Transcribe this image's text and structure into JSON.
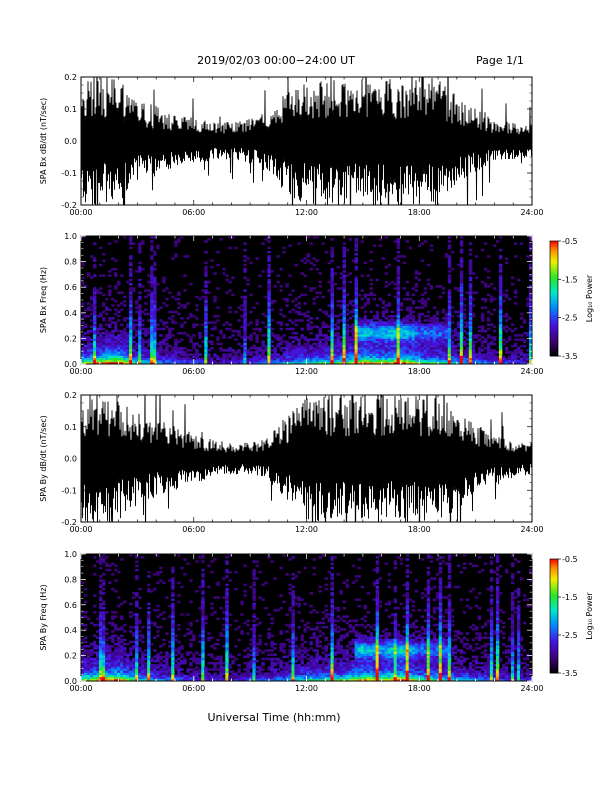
{
  "header": {
    "title": "2019/02/03  00:00−24:00 UT",
    "page": "Page 1/1"
  },
  "xlabel": "Universal Time (hh:mm)",
  "colorbar": {
    "label": "Log₁₀ Power",
    "ticks": [
      "-0.5",
      "-1.5",
      "-2.5",
      "-3.5"
    ],
    "range": [
      -3.5,
      -0.5
    ]
  },
  "chart_data": [
    {
      "type": "line",
      "ylabel": "SPA Bx dB/dt (nT/sec)",
      "xlim": [
        0,
        24
      ],
      "ylim": [
        -0.2,
        0.2
      ],
      "x_ticks": [
        "00:00",
        "06:00",
        "12:00",
        "18:00",
        "24:00"
      ],
      "y_ticks": [
        "0.2",
        "0.1",
        "0.0",
        "-0.1",
        "-0.2"
      ],
      "envelope": {
        "x_hours": [
          0,
          1,
          2,
          3,
          4,
          5,
          6,
          7,
          8,
          9,
          10,
          11,
          12,
          13,
          14,
          15,
          16,
          17,
          18,
          19,
          20,
          21,
          22,
          23,
          24
        ],
        "amplitude": [
          0.2,
          0.2,
          0.2,
          0.13,
          0.11,
          0.08,
          0.07,
          0.06,
          0.06,
          0.07,
          0.1,
          0.17,
          0.2,
          0.2,
          0.2,
          0.2,
          0.2,
          0.2,
          0.2,
          0.2,
          0.14,
          0.1,
          0.07,
          0.06,
          0.05
        ]
      }
    },
    {
      "type": "heatmap",
      "ylabel": "SPA Bx Freq (Hz)",
      "xlim": [
        0,
        24
      ],
      "ylim": [
        0,
        1
      ],
      "x_ticks": [
        "00:00",
        "06:00",
        "12:00",
        "18:00",
        "24:00"
      ],
      "y_ticks": [
        "1.0",
        "0.8",
        "0.6",
        "0.4",
        "0.2",
        "0.0"
      ],
      "z_range": [
        -3.5,
        -0.5
      ],
      "activity": {
        "x_hours": [
          0,
          1,
          2,
          3,
          4,
          5,
          6,
          7,
          8,
          9,
          10,
          11,
          12,
          13,
          14,
          15,
          16,
          17,
          18,
          19,
          20,
          21,
          22,
          23,
          24
        ],
        "level": [
          0.6,
          0.8,
          0.9,
          0.5,
          0.4,
          0.3,
          0.25,
          0.2,
          0.2,
          0.25,
          0.3,
          0.4,
          0.5,
          0.55,
          0.6,
          0.8,
          0.7,
          0.85,
          0.6,
          0.55,
          0.45,
          0.35,
          0.3,
          0.25,
          0.2
        ]
      }
    },
    {
      "type": "line",
      "ylabel": "SPA By dB/dt (nT/sec)",
      "xlim": [
        0,
        24
      ],
      "ylim": [
        -0.2,
        0.2
      ],
      "x_ticks": [
        "00:00",
        "06:00",
        "12:00",
        "18:00",
        "24:00"
      ],
      "y_ticks": [
        "0.2",
        "0.1",
        "0.0",
        "-0.1",
        "-0.2"
      ],
      "envelope": {
        "x_hours": [
          0,
          1,
          2,
          3,
          4,
          5,
          6,
          7,
          8,
          9,
          10,
          11,
          12,
          13,
          14,
          15,
          16,
          17,
          18,
          19,
          20,
          21,
          22,
          23,
          24
        ],
        "amplitude": [
          0.2,
          0.2,
          0.2,
          0.15,
          0.12,
          0.1,
          0.08,
          0.06,
          0.05,
          0.05,
          0.07,
          0.14,
          0.2,
          0.2,
          0.2,
          0.2,
          0.2,
          0.2,
          0.2,
          0.2,
          0.16,
          0.11,
          0.08,
          0.06,
          0.05
        ]
      }
    },
    {
      "type": "heatmap",
      "ylabel": "SPA By Freq (Hz)",
      "xlim": [
        0,
        24
      ],
      "ylim": [
        0,
        1
      ],
      "x_ticks": [
        "00:00",
        "06:00",
        "12:00",
        "18:00",
        "24:00"
      ],
      "y_ticks": [
        "1.0",
        "0.8",
        "0.6",
        "0.4",
        "0.2",
        "0.0"
      ],
      "z_range": [
        -3.5,
        -0.5
      ],
      "activity": {
        "x_hours": [
          0,
          1,
          2,
          3,
          4,
          5,
          6,
          7,
          8,
          9,
          10,
          11,
          12,
          13,
          14,
          15,
          16,
          17,
          18,
          19,
          20,
          21,
          22,
          23,
          24
        ],
        "level": [
          0.6,
          0.8,
          0.85,
          0.5,
          0.4,
          0.3,
          0.25,
          0.2,
          0.2,
          0.25,
          0.3,
          0.4,
          0.5,
          0.55,
          0.6,
          0.8,
          0.7,
          0.85,
          0.6,
          0.55,
          0.45,
          0.35,
          0.3,
          0.25,
          0.2
        ]
      }
    }
  ]
}
